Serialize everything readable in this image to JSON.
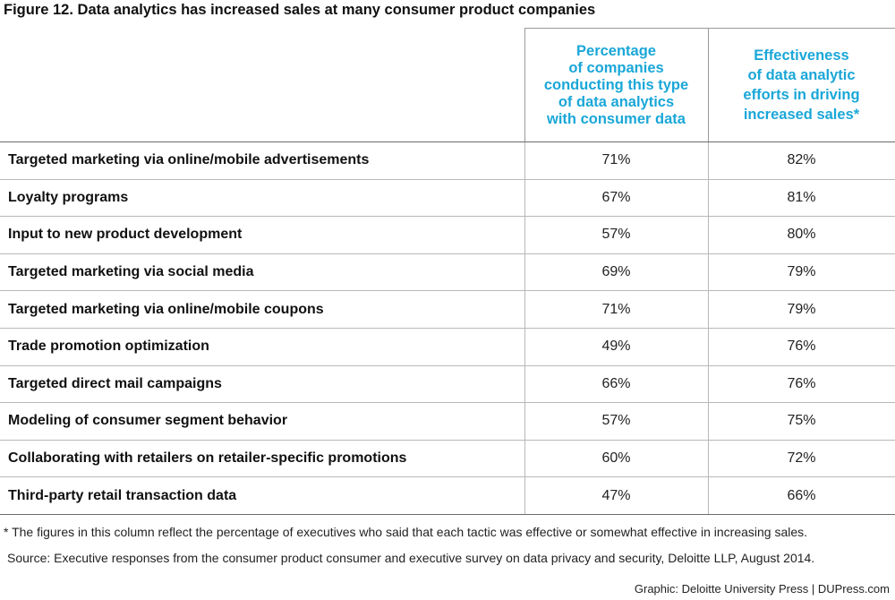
{
  "title": "Figure 12. Data analytics has increased sales at many consumer product companies",
  "chart_data": {
    "type": "table",
    "title": "Figure 12. Data analytics has increased sales at many consumer product companies",
    "columns": [
      "",
      "Percentage of companies conducting this type of data analytics with consumer data",
      "Effectiveness of data analytic efforts in driving increased sales*"
    ],
    "header_lines": {
      "col1": [
        "Percentage",
        "of companies",
        "conducting this type",
        "of data analytics",
        "with consumer data"
      ],
      "col2": [
        "Effectiveness",
        "of data analytic",
        "efforts in driving",
        "increased sales*"
      ]
    },
    "rows": [
      {
        "label": "Targeted marketing via online/mobile advertisements",
        "pct": "71%",
        "eff": "82%"
      },
      {
        "label": "Loyalty programs",
        "pct": "67%",
        "eff": "81%"
      },
      {
        "label": "Input to new product development",
        "pct": "57%",
        "eff": "80%"
      },
      {
        "label": "Targeted marketing via social media",
        "pct": "69%",
        "eff": "79%"
      },
      {
        "label": "Targeted marketing via online/mobile coupons",
        "pct": "71%",
        "eff": "79%"
      },
      {
        "label": "Trade promotion optimization",
        "pct": "49%",
        "eff": "76%"
      },
      {
        "label": "Targeted direct mail campaigns",
        "pct": "66%",
        "eff": "76%"
      },
      {
        "label": "Modeling of consumer segment behavior",
        "pct": "57%",
        "eff": "75%"
      },
      {
        "label": "Collaborating with retailers on retailer-specific promotions",
        "pct": "60%",
        "eff": "72%"
      },
      {
        "label": "Third-party retail transaction data",
        "pct": "47%",
        "eff": "66%"
      }
    ]
  },
  "footnote": "* The figures in this column reflect the percentage of executives who said that each tactic was effective or somewhat effective in increasing sales.",
  "source": "Source: Executive responses from the consumer product consumer and executive survey on data privacy and security, Deloitte LLP, August 2014.",
  "credit": "Graphic: Deloitte University Press  |  DUPress.com",
  "colors": {
    "header_accent": "#1aa7d8",
    "text": "#1a1a1a",
    "rule": "#6b6b6b"
  }
}
